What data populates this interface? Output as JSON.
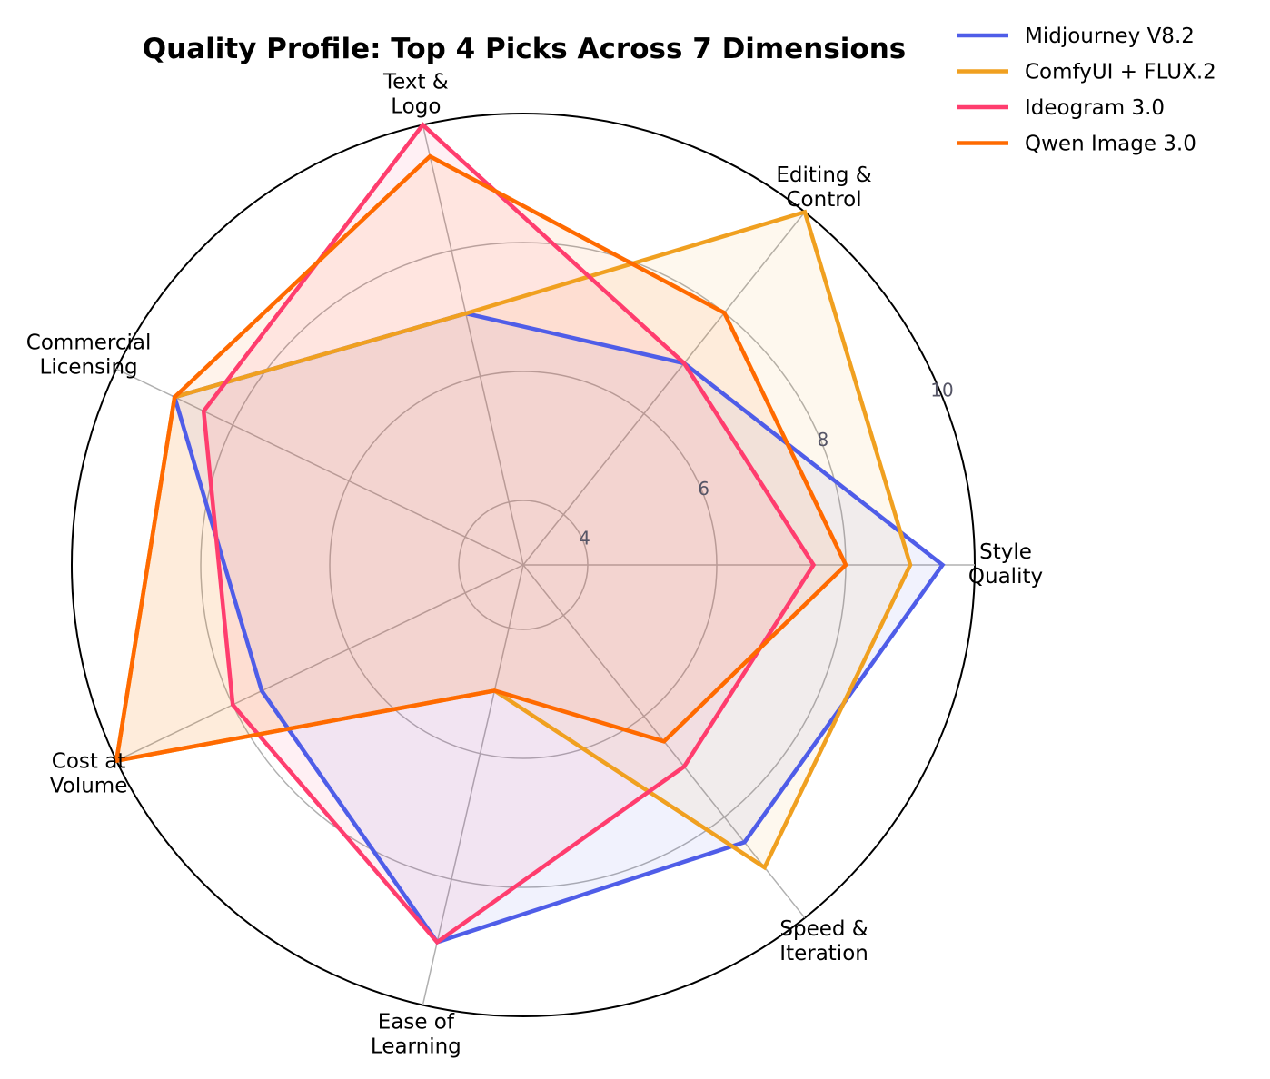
{
  "chart_data": {
    "type": "radar",
    "title": "Quality Profile: Top 4 Picks Across 7 Dimensions",
    "axes": [
      [
        "Style",
        "Quality"
      ],
      [
        "Editing &",
        "Control"
      ],
      [
        "Text &",
        "Logo"
      ],
      [
        "Commercial",
        "Licensing"
      ],
      [
        "Cost at",
        "Volume"
      ],
      [
        "Ease of",
        "Learning"
      ],
      [
        "Speed &",
        "Iteration"
      ]
    ],
    "rlim": [
      3,
      10
    ],
    "rticks": [
      4,
      6,
      8,
      10
    ],
    "grid": true,
    "legend_position": "top-right",
    "series": [
      {
        "name": "Midjourney V8.2",
        "color": "#4f5de8",
        "values": [
          9.5,
          7.0,
          7.0,
          9.0,
          7.5,
          9.0,
          8.5
        ]
      },
      {
        "name": "ComfyUI + FLUX.2",
        "color": "#f0a020",
        "values": [
          9.0,
          10.0,
          7.0,
          9.0,
          10.0,
          5.0,
          9.0
        ]
      },
      {
        "name": "Ideogram 3.0",
        "color": "#ff3d6e",
        "values": [
          7.5,
          7.0,
          10.0,
          8.5,
          8.0,
          9.0,
          7.0
        ]
      },
      {
        "name": "Qwen Image 3.0",
        "color": "#ff6a00",
        "values": [
          8.0,
          8.0,
          9.5,
          9.0,
          10.0,
          5.0,
          6.5
        ]
      }
    ]
  }
}
